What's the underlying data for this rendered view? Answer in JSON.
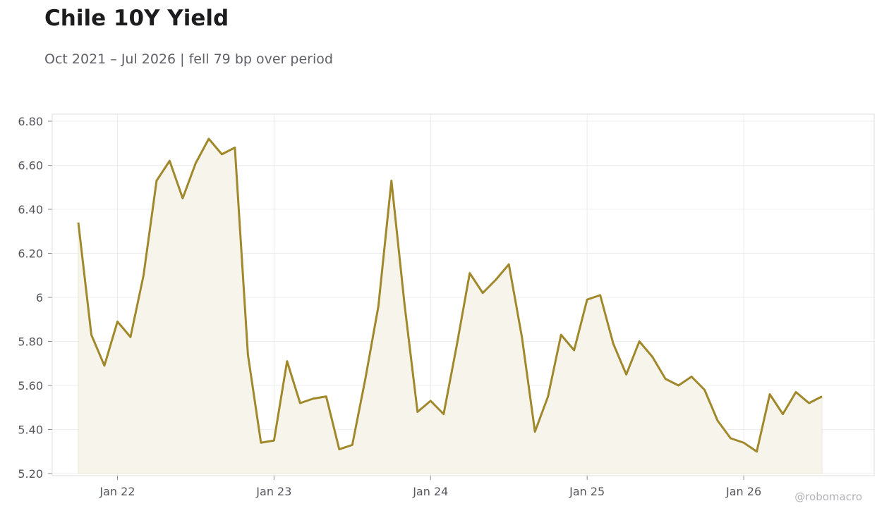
{
  "header": {
    "title": "Chile 10Y Yield",
    "subtitle": "Oct 2021 – Jul 2026 | fell 79 bp over period"
  },
  "watermark": "@robomacro",
  "colors": {
    "line": "#a0882b",
    "area": "#f7f4ec",
    "grid": "#ececec",
    "frame": "#dcdcdc",
    "axis_text": "#55575e"
  },
  "chart_data": {
    "type": "area",
    "title": "Chile 10Y Yield",
    "subtitle": "Oct 2021 – Jul 2026 | fell 79 bp over period",
    "xlabel": "",
    "ylabel": "",
    "ylim": [
      5.2,
      6.8
    ],
    "grid": true,
    "legend": "none",
    "y_ticks": [
      {
        "value": 5.2,
        "label": "5.20"
      },
      {
        "value": 5.4,
        "label": "5.40"
      },
      {
        "value": 5.6,
        "label": "5.60"
      },
      {
        "value": 5.8,
        "label": "5.80"
      },
      {
        "value": 6.0,
        "label": "6"
      },
      {
        "value": 6.2,
        "label": "6.20"
      },
      {
        "value": 6.4,
        "label": "6.40"
      },
      {
        "value": 6.6,
        "label": "6.60"
      },
      {
        "value": 6.8,
        "label": "6.80"
      }
    ],
    "x_ticks": [
      {
        "date": "2022-01",
        "label": "Jan 22"
      },
      {
        "date": "2023-01",
        "label": "Jan 23"
      },
      {
        "date": "2024-01",
        "label": "Jan 24"
      },
      {
        "date": "2025-01",
        "label": "Jan 25"
      },
      {
        "date": "2026-01",
        "label": "Jan 26"
      }
    ],
    "xlim": [
      "2021-08",
      "2026-11"
    ],
    "series": [
      {
        "x": [
          "2021-10",
          "2021-11",
          "2021-12",
          "2022-01",
          "2022-02",
          "2022-03",
          "2022-04",
          "2022-05",
          "2022-06",
          "2022-07",
          "2022-08",
          "2022-09",
          "2022-10",
          "2022-11",
          "2022-12",
          "2023-01",
          "2023-02",
          "2023-03",
          "2023-04",
          "2023-05",
          "2023-06",
          "2023-07",
          "2023-08",
          "2023-09",
          "2023-10",
          "2023-11",
          "2023-12",
          "2024-01",
          "2024-02",
          "2024-03",
          "2024-04",
          "2024-05",
          "2024-06",
          "2024-07",
          "2024-08",
          "2024-09",
          "2024-10",
          "2024-11",
          "2024-12",
          "2025-01",
          "2025-02",
          "2025-03",
          "2025-04",
          "2025-05",
          "2025-06",
          "2025-07",
          "2025-08",
          "2025-09",
          "2025-10",
          "2025-11",
          "2025-12",
          "2026-01",
          "2026-02",
          "2026-03",
          "2026-04",
          "2026-05",
          "2026-06",
          "2026-07"
        ],
        "values": [
          6.34,
          5.83,
          5.69,
          5.89,
          5.82,
          6.1,
          6.53,
          6.62,
          6.45,
          6.61,
          6.72,
          6.65,
          6.68,
          5.74,
          5.34,
          5.35,
          5.71,
          5.52,
          5.54,
          5.55,
          5.31,
          5.33,
          5.63,
          5.96,
          6.53,
          5.97,
          5.48,
          5.53,
          5.47,
          5.78,
          6.11,
          6.02,
          6.08,
          6.15,
          5.82,
          5.39,
          5.55,
          5.83,
          5.76,
          5.99,
          6.01,
          5.79,
          5.65,
          5.8,
          5.73,
          5.63,
          5.6,
          5.64,
          5.58,
          5.44,
          5.36,
          5.34,
          5.3,
          5.56,
          5.47,
          5.57,
          5.52,
          5.55
        ]
      }
    ]
  }
}
